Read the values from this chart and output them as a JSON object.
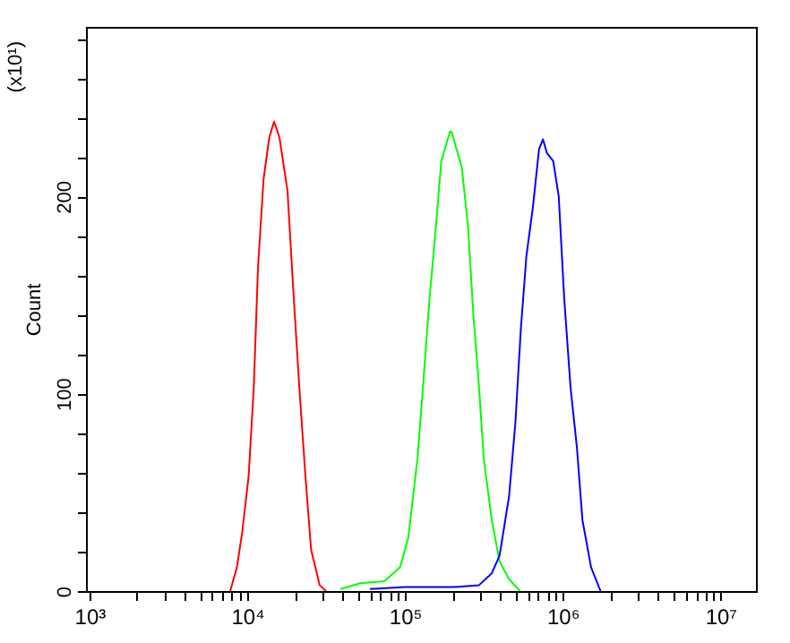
{
  "chart_data": {
    "type": "line",
    "ylabel": "Count",
    "annotations": [
      "(x10¹)"
    ],
    "xlim": [
      950,
      16800000
    ],
    "ylim": [
      0,
      286
    ],
    "log": "x",
    "grid": false,
    "marker": "none",
    "line_style": "solid",
    "xticks": [
      {
        "value": 1000,
        "label": "10³"
      },
      {
        "value": 2000,
        "label": null
      },
      {
        "value": 3000,
        "label": null
      },
      {
        "value": 4000,
        "label": null
      },
      {
        "value": 5000,
        "label": null
      },
      {
        "value": 6000,
        "label": null
      },
      {
        "value": 7000,
        "label": null
      },
      {
        "value": 8000,
        "label": null
      },
      {
        "value": 9000,
        "label": null
      },
      {
        "value": 10000,
        "label": "10⁴"
      },
      {
        "value": 20000,
        "label": null
      },
      {
        "value": 30000,
        "label": null
      },
      {
        "value": 40000,
        "label": null
      },
      {
        "value": 50000,
        "label": null
      },
      {
        "value": 60000,
        "label": null
      },
      {
        "value": 70000,
        "label": null
      },
      {
        "value": 80000,
        "label": null
      },
      {
        "value": 90000,
        "label": null
      },
      {
        "value": 100000,
        "label": "10⁵"
      },
      {
        "value": 200000,
        "label": null
      },
      {
        "value": 300000,
        "label": null
      },
      {
        "value": 400000,
        "label": null
      },
      {
        "value": 500000,
        "label": null
      },
      {
        "value": 600000,
        "label": null
      },
      {
        "value": 700000,
        "label": null
      },
      {
        "value": 800000,
        "label": null
      },
      {
        "value": 900000,
        "label": null
      },
      {
        "value": 1000000,
        "label": "10⁶"
      },
      {
        "value": 2000000,
        "label": null
      },
      {
        "value": 3000000,
        "label": null
      },
      {
        "value": 4000000,
        "label": null
      },
      {
        "value": 5000000,
        "label": null
      },
      {
        "value": 6000000,
        "label": null
      },
      {
        "value": 7000000,
        "label": null
      },
      {
        "value": 8000000,
        "label": null
      },
      {
        "value": 9000000,
        "label": null
      },
      {
        "value": 10000000,
        "label": "10⁷"
      }
    ],
    "yticks": [
      0,
      {
        "value": 20,
        "label": null
      },
      {
        "value": 40,
        "label": null
      },
      {
        "value": 60,
        "label": null
      },
      {
        "value": 80,
        "label": null
      },
      100,
      {
        "value": 120,
        "label": null
      },
      {
        "value": 140,
        "label": null
      },
      {
        "value": 160,
        "label": null
      },
      {
        "value": 180,
        "label": null
      },
      200,
      {
        "value": 220,
        "label": null
      },
      {
        "value": 240,
        "label": null
      },
      {
        "value": 260,
        "label": null
      },
      {
        "value": 280,
        "label": null
      }
    ],
    "series": [
      {
        "color": "#ff0000",
        "x": [
          7800,
          8600,
          9300,
          10200,
          11000,
          11700,
          12700,
          13800,
          14800,
          16000,
          18000,
          19500,
          21400,
          23400,
          25400,
          28800,
          31600
        ],
        "values": [
          0,
          12,
          30,
          58,
          103,
          164,
          209,
          230,
          238,
          230,
          203,
          155,
          103,
          58,
          21,
          3,
          0
        ]
      },
      {
        "color": "#00ff00",
        "x": [
          39000,
          52000,
          74000,
          93000,
          105000,
          120000,
          130000,
          143000,
          155000,
          170000,
          193000,
          197000,
          229000,
          251000,
          272000,
          295000,
          316000,
          355000,
          398000,
          457000,
          537000
        ],
        "values": [
          1,
          4,
          5,
          12,
          27,
          67,
          103,
          148,
          179,
          218,
          233,
          233,
          215,
          185,
          139,
          103,
          67,
          36,
          15,
          6,
          0
        ]
      },
      {
        "color": "#0000ff",
        "x": [
          60000,
          100000,
          200000,
          295000,
          355000,
          398000,
          457000,
          501000,
          543000,
          589000,
          646000,
          708000,
          750000,
          794000,
          871000,
          944000,
          1023000,
          1122000,
          1230000,
          1334000,
          1514000,
          1738000
        ],
        "values": [
          1,
          2,
          2,
          3,
          9,
          18,
          48,
          85,
          133,
          170,
          194,
          224,
          229,
          222,
          218,
          200,
          148,
          103,
          73,
          36,
          12,
          0
        ]
      }
    ]
  }
}
